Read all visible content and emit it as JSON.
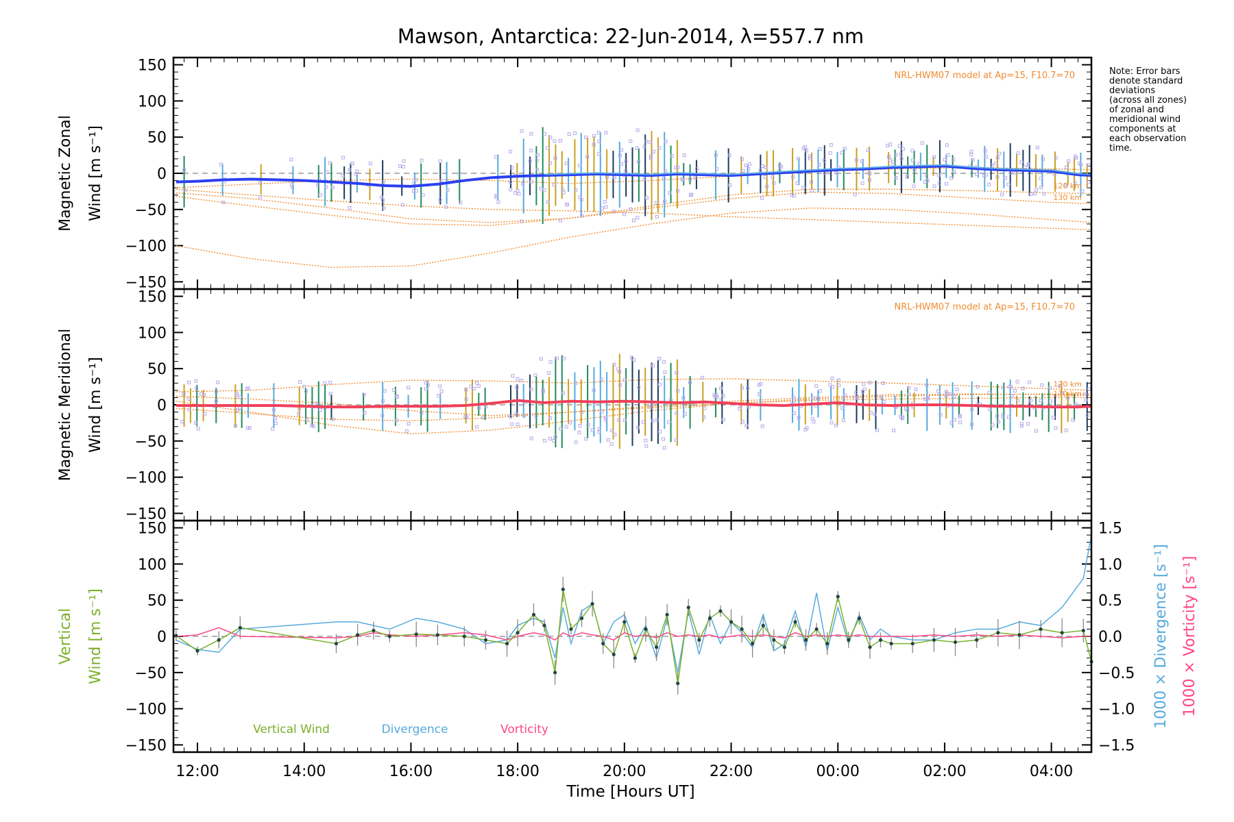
{
  "title": "Mawson, Antarctica: 22-Jun-2014, λ=557.7 nm",
  "xlabel": "Time [Hours UT]",
  "x_ticks": [
    "12:00",
    "14:00",
    "16:00",
    "18:00",
    "20:00",
    "22:00",
    "00:00",
    "02:00",
    "04:00"
  ],
  "note_lines": [
    "Note: Error bars",
    "denote standard",
    "deviations",
    "(across all zones)",
    "of zonal and",
    "meridional wind",
    "components at",
    "each observation",
    "time."
  ],
  "model_label": "NRL-HWM07 model at Ap=15, F10.7=70",
  "colors": {
    "zonal": "#2b3ff0",
    "zonal_light": "#5aa9e6",
    "meridional": "#f0405a",
    "model": "#f08c30",
    "scatter": "#b4a8e8",
    "vertical": "#7ab02a",
    "divergence": "#55aadd",
    "vorticity": "#ff4488",
    "dots": "#224444"
  },
  "chart_data": [
    {
      "type": "line",
      "panel": "zonal",
      "ylabel_lines": [
        "Magnetic Zonal",
        "Wind [m s⁻¹]"
      ],
      "y_ticks": [
        "150",
        "100",
        "50",
        "0",
        "−50",
        "−100",
        "−150"
      ],
      "ylim": [
        -160,
        160
      ],
      "xlim_hours": [
        11.55,
        28.75
      ],
      "model_alt_labels": [
        "120 km",
        "130 km"
      ],
      "series": [
        {
          "name": "",
          "x": [
            11.6,
            12.0,
            12.5,
            13.0,
            13.5,
            14.0,
            14.5,
            15.0,
            15.5,
            16.0,
            16.5,
            17.0,
            17.5,
            18.0,
            18.5,
            19.0,
            19.5,
            20.0,
            20.5,
            21.0,
            21.5,
            22.0,
            22.5,
            23.0,
            23.5,
            24.0,
            24.5,
            25.0,
            25.5,
            26.0,
            26.5,
            27.0,
            27.5,
            28.0,
            28.5,
            28.75
          ],
          "values": [
            -12,
            -11,
            -9,
            -8,
            -9,
            -10,
            -12,
            -14,
            -17,
            -18,
            -15,
            -10,
            -6,
            -4,
            -3,
            -2,
            -1,
            -2,
            -3,
            -1,
            -2,
            -3,
            -1,
            1,
            3,
            5,
            6,
            8,
            9,
            10,
            7,
            5,
            4,
            3,
            -2,
            -3
          ]
        }
      ],
      "model_curves": [
        {
          "x": [
            11.6,
            13,
            14.5,
            16,
            17.5,
            19,
            20.5,
            22,
            23.5,
            25,
            26.5,
            28,
            28.75
          ],
          "values": [
            -27,
            -35,
            -48,
            -63,
            -68,
            -62,
            -45,
            -30,
            -22,
            -22,
            -24,
            -27,
            -28
          ]
        },
        {
          "x": [
            11.6,
            13,
            14.5,
            16,
            17.5,
            19,
            20.5,
            22,
            23.5,
            25,
            26.5,
            28,
            28.75
          ],
          "values": [
            -32,
            -45,
            -58,
            -70,
            -72,
            -62,
            -48,
            -35,
            -26,
            -28,
            -34,
            -40,
            -42
          ]
        },
        {
          "x": [
            11.6,
            13,
            14.5,
            16,
            17.5,
            19,
            20.5,
            22,
            23.5,
            25,
            26.5,
            28,
            28.75
          ],
          "values": [
            -100,
            -118,
            -130,
            -128,
            -110,
            -88,
            -70,
            -55,
            -48,
            -50,
            -56,
            -64,
            -68
          ]
        },
        {
          "x": [
            11.6,
            13,
            14.5,
            16,
            17.5,
            19,
            20.5,
            22,
            23.5,
            25,
            26.5,
            28,
            28.75
          ],
          "values": [
            -22,
            -30,
            -38,
            -45,
            -50,
            -52,
            -55,
            -60,
            -64,
            -68,
            -72,
            -76,
            -78
          ]
        },
        {
          "x": [
            11.6,
            13,
            14.5,
            16,
            17.5,
            19,
            20.5,
            22,
            23.5,
            25,
            26.5,
            28,
            28.75
          ],
          "values": [
            -20,
            -15,
            -10,
            -8,
            -10,
            -14,
            -10,
            -4,
            2,
            6,
            8,
            6,
            5
          ]
        }
      ]
    },
    {
      "type": "line",
      "panel": "meridional",
      "ylabel_lines": [
        "Magnetic Meridional",
        "Wind [m s⁻¹]"
      ],
      "y_ticks": [
        "150",
        "100",
        "50",
        "0",
        "−50",
        "−100",
        "−150"
      ],
      "ylim": [
        -160,
        160
      ],
      "xlim_hours": [
        11.55,
        28.75
      ],
      "model_alt_labels": [
        "120 km",
        "130 km"
      ],
      "series": [
        {
          "name": "",
          "x": [
            11.6,
            12.0,
            12.5,
            13.0,
            13.5,
            14.0,
            14.5,
            15.0,
            15.5,
            16.0,
            16.5,
            17.0,
            17.5,
            18.0,
            18.5,
            19.0,
            19.5,
            20.0,
            20.5,
            21.0,
            21.5,
            22.0,
            22.5,
            23.0,
            23.5,
            24.0,
            24.5,
            25.0,
            25.5,
            26.0,
            26.5,
            27.0,
            27.5,
            28.0,
            28.5,
            28.75
          ],
          "values": [
            -1,
            -1,
            -1,
            -1,
            -1,
            -2,
            -3,
            -3,
            -2,
            -2,
            -2,
            -1,
            2,
            6,
            3,
            5,
            4,
            5,
            4,
            3,
            4,
            2,
            0,
            -1,
            1,
            3,
            0,
            -1,
            0,
            0,
            -1,
            -2,
            -2,
            -3,
            -3,
            -2
          ]
        }
      ],
      "model_curves": [
        {
          "x": [
            11.6,
            13,
            14.5,
            16,
            17.5,
            19,
            20.5,
            22,
            23.5,
            25,
            26.5,
            28,
            28.75
          ],
          "values": [
            18,
            20,
            28,
            34,
            33,
            30,
            35,
            36,
            33,
            30,
            26,
            22,
            20
          ]
        },
        {
          "x": [
            11.6,
            13,
            14.5,
            16,
            17.5,
            19,
            20.5,
            22,
            23.5,
            25,
            26.5,
            28,
            28.75
          ],
          "values": [
            12,
            8,
            2,
            -8,
            -15,
            -10,
            -2,
            5,
            10,
            14,
            15,
            14,
            13
          ]
        },
        {
          "x": [
            11.6,
            13,
            14.5,
            16,
            17.5,
            19,
            20.5,
            22,
            23.5,
            25,
            26.5,
            28,
            28.75
          ],
          "values": [
            5,
            -10,
            -28,
            -40,
            -35,
            -22,
            -8,
            2,
            8,
            12,
            14,
            15,
            15
          ]
        },
        {
          "x": [
            11.6,
            13,
            14.5,
            16,
            17.5,
            19,
            20.5,
            22,
            23.5,
            25,
            26.5,
            28,
            28.75
          ],
          "values": [
            -5,
            -12,
            -20,
            -22,
            -18,
            -10,
            -4,
            2,
            6,
            8,
            9,
            10,
            10
          ]
        }
      ]
    },
    {
      "type": "line",
      "panel": "vertical",
      "ylabel_lines": [
        "Vertical",
        "Wind [m s⁻¹]"
      ],
      "y_ticks": [
        "150",
        "100",
        "50",
        "0",
        "−50",
        "−100",
        "−150"
      ],
      "ylim": [
        -160,
        160
      ],
      "y2_ticks": [
        "1.5",
        "1.0",
        "0.5",
        "0.0",
        "−0.5",
        "−1.0",
        "−1.5"
      ],
      "y2lim": [
        -1.6,
        1.6
      ],
      "y2_labels": [
        "1000 × Divergence [s⁻¹]",
        "1000 × Vorticity [s⁻¹]"
      ],
      "xlim_hours": [
        11.55,
        28.75
      ],
      "series": [
        {
          "name": "Vertical Wind",
          "x": [
            11.6,
            12.0,
            12.4,
            12.8,
            14.6,
            15.0,
            15.3,
            15.6,
            16.1,
            16.5,
            17.0,
            17.4,
            17.8,
            18.0,
            18.3,
            18.5,
            18.7,
            18.85,
            19.0,
            19.2,
            19.4,
            19.6,
            19.8,
            20.0,
            20.2,
            20.4,
            20.6,
            20.8,
            21.0,
            21.2,
            21.4,
            21.6,
            21.8,
            22.0,
            22.2,
            22.4,
            22.6,
            22.8,
            23.0,
            23.2,
            23.4,
            23.6,
            23.8,
            24.0,
            24.2,
            24.4,
            24.6,
            24.8,
            25.0,
            25.4,
            25.8,
            26.2,
            26.6,
            27.0,
            27.4,
            27.8,
            28.2,
            28.6,
            28.75
          ],
          "values": [
            1,
            -20,
            -5,
            12,
            -10,
            2,
            8,
            0,
            3,
            2,
            0,
            -5,
            -10,
            5,
            30,
            15,
            -50,
            65,
            10,
            25,
            45,
            -10,
            -25,
            20,
            -30,
            10,
            -15,
            30,
            -65,
            40,
            -5,
            25,
            35,
            20,
            10,
            -10,
            15,
            -5,
            -15,
            20,
            -5,
            10,
            -10,
            55,
            -5,
            25,
            -15,
            -5,
            -10,
            -10,
            -5,
            -8,
            -5,
            5,
            2,
            10,
            5,
            8,
            -35
          ]
        },
        {
          "name": "Divergence",
          "x": [
            11.6,
            12.0,
            12.4,
            12.8,
            14.6,
            15.0,
            15.3,
            15.6,
            16.1,
            16.5,
            17.0,
            17.4,
            17.8,
            18.0,
            18.3,
            18.5,
            18.7,
            18.85,
            19.0,
            19.2,
            19.4,
            19.6,
            19.8,
            20.0,
            20.2,
            20.4,
            20.6,
            20.8,
            21.0,
            21.2,
            21.4,
            21.6,
            21.8,
            22.0,
            22.2,
            22.4,
            22.6,
            22.8,
            23.0,
            23.2,
            23.4,
            23.6,
            23.8,
            24.0,
            24.2,
            24.4,
            24.6,
            24.8,
            25.0,
            25.4,
            25.8,
            26.2,
            26.6,
            27.0,
            27.4,
            27.8,
            28.2,
            28.6,
            28.75
          ],
          "values": [
            -0.05,
            -0.18,
            -0.22,
            0.1,
            0.2,
            0.2,
            0.15,
            0.1,
            0.25,
            0.2,
            0.1,
            -0.1,
            -0.05,
            0.15,
            0.25,
            0.2,
            -0.3,
            0.4,
            -0.1,
            0.35,
            0.45,
            -0.1,
            0.2,
            0.3,
            -0.1,
            0.15,
            -0.3,
            0.25,
            -0.5,
            0.35,
            -0.25,
            0.3,
            -0.1,
            0.2,
            0.05,
            -0.15,
            0.3,
            -0.2,
            -0.1,
            0.35,
            -0.15,
            0.6,
            -0.2,
            0.4,
            -0.1,
            0.3,
            -0.05,
            0.1,
            0.0,
            -0.05,
            -0.05,
            0.05,
            0.1,
            0.1,
            0.2,
            0.15,
            0.4,
            0.8,
            1.4
          ]
        },
        {
          "name": "Vorticity",
          "x": [
            11.6,
            12.0,
            12.4,
            12.8,
            14.6,
            15.0,
            15.3,
            15.6,
            16.1,
            16.5,
            17.0,
            17.4,
            17.8,
            18.0,
            18.3,
            18.5,
            18.7,
            18.85,
            19.0,
            19.2,
            19.4,
            19.6,
            19.8,
            20.0,
            20.2,
            20.4,
            20.6,
            20.8,
            21.0,
            21.2,
            21.4,
            21.6,
            21.8,
            22.0,
            22.2,
            22.4,
            22.6,
            22.8,
            23.0,
            23.2,
            23.4,
            23.6,
            23.8,
            24.0,
            24.2,
            24.4,
            24.6,
            24.8,
            25.0,
            25.4,
            25.8,
            26.2,
            26.6,
            27.0,
            27.4,
            27.8,
            28.2,
            28.6,
            28.75
          ],
          "values": [
            0.0,
            0.02,
            0.12,
            0.0,
            -0.02,
            0.0,
            0.05,
            0.02,
            0.0,
            0.02,
            0.05,
            0.02,
            -0.05,
            0.0,
            0.05,
            0.02,
            -0.05,
            0.05,
            0.0,
            0.05,
            0.02,
            0.0,
            -0.05,
            0.05,
            0.0,
            0.02,
            -0.02,
            0.05,
            0.0,
            0.02,
            0.0,
            0.02,
            -0.02,
            0.0,
            0.02,
            0.0,
            0.02,
            0.0,
            -0.02,
            0.05,
            0.0,
            0.02,
            0.0,
            0.02,
            0.0,
            0.02,
            0.0,
            0.0,
            0.0,
            0.0,
            0.02,
            0.0,
            0.02,
            0.0,
            0.02,
            0.0,
            -0.02,
            0.0,
            0.0
          ]
        }
      ],
      "legend": [
        {
          "label": "Vertical Wind",
          "color": "#7ab02a"
        },
        {
          "label": "Divergence",
          "color": "#55aadd"
        },
        {
          "label": "Vorticity",
          "color": "#ff4488"
        }
      ]
    }
  ]
}
